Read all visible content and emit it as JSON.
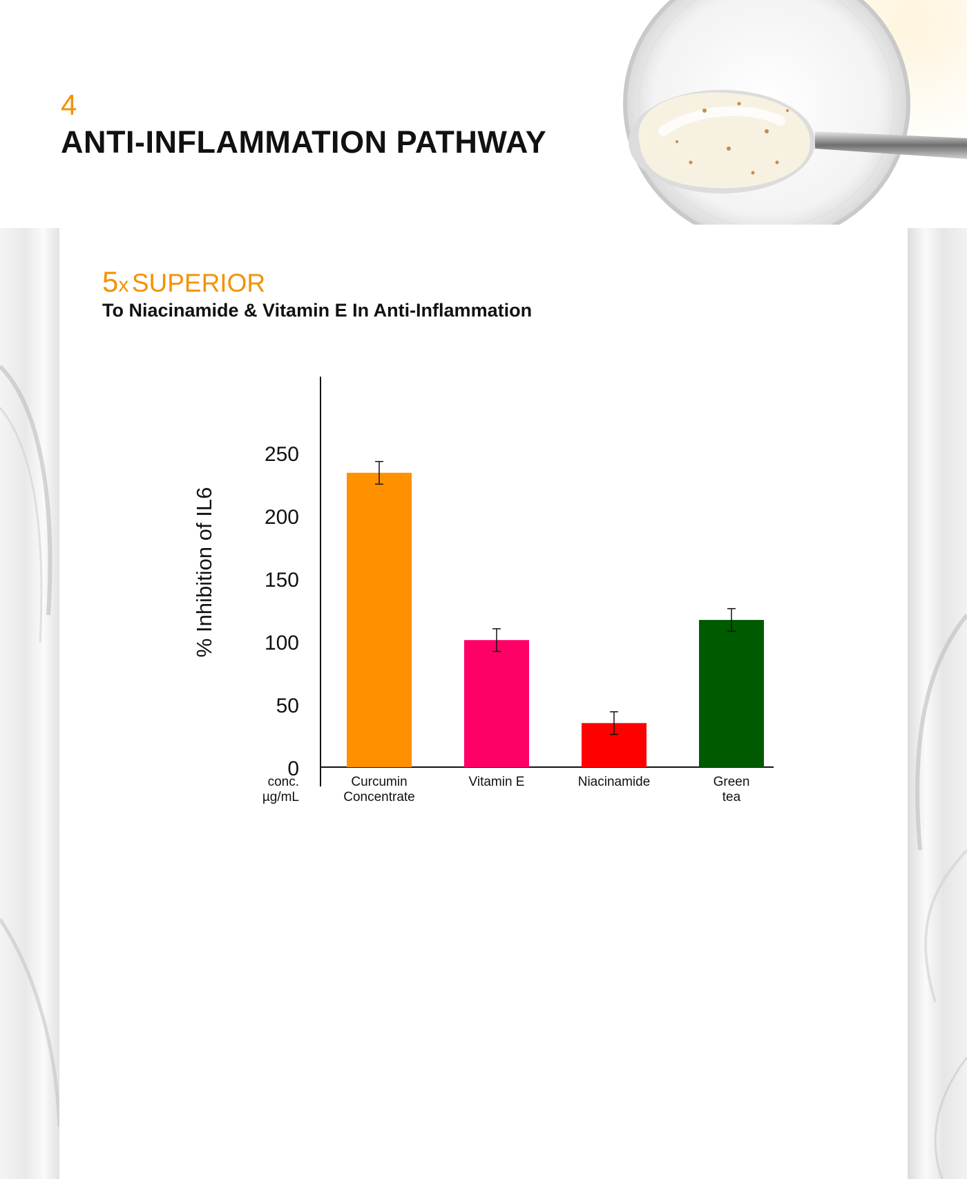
{
  "header": {
    "section_number": "4",
    "title": "ANTI-INFLAMMATION PATHWAY"
  },
  "headline": {
    "multiplier": "5",
    "multiplier_suffix": "x",
    "word": "SUPERIOR",
    "subtitle": "To Niacinamide & Vitamin E In Anti-Inflammation"
  },
  "colors": {
    "accent": "#f39200",
    "curcumin": "#ff9100",
    "vitamin_e": "#ff0066",
    "niacinamide": "#ff0000",
    "green_tea": "#005a00"
  },
  "chart_data": {
    "type": "bar",
    "ylabel": "% Inhibition of IL6",
    "xlabel": "",
    "xlabel_corner": [
      "conc.",
      "µg/mL"
    ],
    "ylim": [
      0,
      310
    ],
    "yticks": [
      0,
      50,
      100,
      150,
      200,
      250
    ],
    "categories": [
      [
        "Curcumin",
        "Concentrate"
      ],
      [
        "Vitamin E"
      ],
      [
        "Niacinamide"
      ],
      [
        "Green",
        "tea"
      ]
    ],
    "values": [
      234,
      101,
      35,
      117
    ],
    "error": [
      9,
      9,
      9,
      9
    ],
    "bar_colors": [
      "#ff9100",
      "#ff0066",
      "#ff0000",
      "#005a00"
    ],
    "grid": false
  }
}
